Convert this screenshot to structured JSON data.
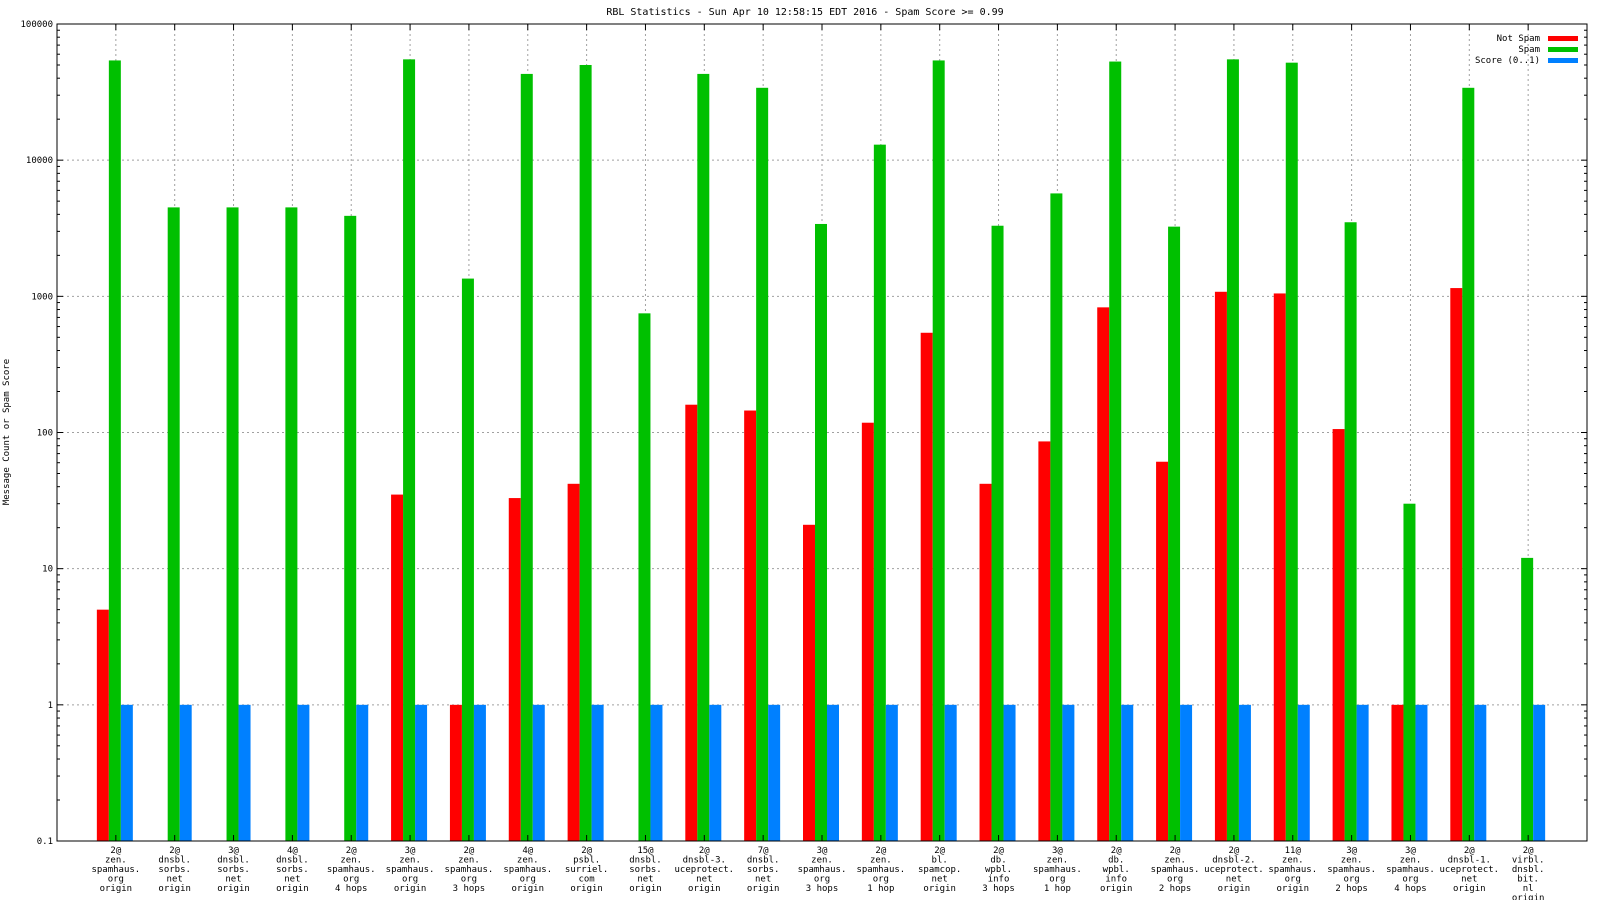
{
  "chart_data": {
    "type": "bar",
    "title": "RBL Statistics - Sun Apr 10 12:58:15 EDT 2016 - Spam Score >= 0.99",
    "ylabel": "Message Count or Spam Score",
    "xlabel": "",
    "yscale": "log",
    "ylim": [
      0.1,
      100000
    ],
    "yticks": [
      "0.1",
      "1",
      "10",
      "100",
      "1000",
      "10000",
      "100000"
    ],
    "grid": true,
    "legend_position": "top-right",
    "categories": [
      [
        "2@",
        "zen.",
        "spamhaus.",
        "org",
        "origin"
      ],
      [
        "2@",
        "dnsbl.",
        "sorbs.",
        "net",
        "origin"
      ],
      [
        "3@",
        "dnsbl.",
        "sorbs.",
        "net",
        "origin"
      ],
      [
        "4@",
        "dnsbl.",
        "sorbs.",
        "net",
        "origin"
      ],
      [
        "2@",
        "zen.",
        "spamhaus.",
        "org",
        "4 hops"
      ],
      [
        "3@",
        "zen.",
        "spamhaus.",
        "org",
        "origin"
      ],
      [
        "2@",
        "zen.",
        "spamhaus.",
        "org",
        "3 hops"
      ],
      [
        "4@",
        "zen.",
        "spamhaus.",
        "org",
        "origin"
      ],
      [
        "2@",
        "psbl.",
        "surriel.",
        "com",
        "origin"
      ],
      [
        "15@",
        "dnsbl.",
        "sorbs.",
        "net",
        "origin"
      ],
      [
        "2@",
        "dnsbl-3.",
        "uceprotect.",
        "net",
        "origin"
      ],
      [
        "7@",
        "dnsbl.",
        "sorbs.",
        "net",
        "origin"
      ],
      [
        "3@",
        "zen.",
        "spamhaus.",
        "org",
        "3 hops"
      ],
      [
        "2@",
        "zen.",
        "spamhaus.",
        "org",
        "1 hop"
      ],
      [
        "2@",
        "bl.",
        "spamcop.",
        "net",
        "origin"
      ],
      [
        "2@",
        "db.",
        "wpbl.",
        "info",
        "3 hops"
      ],
      [
        "3@",
        "zen.",
        "spamhaus.",
        "org",
        "1 hop"
      ],
      [
        "2@",
        "db.",
        "wpbl.",
        "info",
        "origin"
      ],
      [
        "2@",
        "zen.",
        "spamhaus.",
        "org",
        "2 hops"
      ],
      [
        "2@",
        "dnsbl-2.",
        "uceprotect.",
        "net",
        "origin"
      ],
      [
        "11@",
        "zen.",
        "spamhaus.",
        "org",
        "origin"
      ],
      [
        "3@",
        "zen.",
        "spamhaus.",
        "org",
        "2 hops"
      ],
      [
        "3@",
        "zen.",
        "spamhaus.",
        "org",
        "4 hops"
      ],
      [
        "2@",
        "dnsbl-1.",
        "uceprotect.",
        "net",
        "origin"
      ],
      [
        "2@",
        "virbl.",
        "dnsbl.",
        "bit.",
        "nl",
        "origin"
      ]
    ],
    "series": [
      {
        "name": "Not Spam",
        "color": "#ff0000",
        "values": [
          5,
          null,
          null,
          null,
          null,
          35,
          1,
          33,
          42,
          null,
          160,
          145,
          21,
          118,
          540,
          42,
          86,
          830,
          61,
          1080,
          1050,
          106,
          1,
          1150,
          null
        ]
      },
      {
        "name": "Spam",
        "color": "#00c000",
        "values": [
          54000,
          4500,
          4500,
          4500,
          3900,
          55000,
          1350,
          43000,
          50000,
          750,
          43000,
          34000,
          3400,
          13000,
          54000,
          3300,
          5700,
          53000,
          3250,
          55000,
          52000,
          3500,
          30,
          34000,
          12
        ]
      },
      {
        "name": "Score (0..1)",
        "color": "#0080ff",
        "values": [
          1,
          1,
          1,
          1,
          1,
          1,
          1,
          1,
          1,
          1,
          1,
          1,
          1,
          1,
          1,
          1,
          1,
          1,
          1,
          1,
          1,
          1,
          1,
          1,
          1
        ]
      }
    ]
  }
}
